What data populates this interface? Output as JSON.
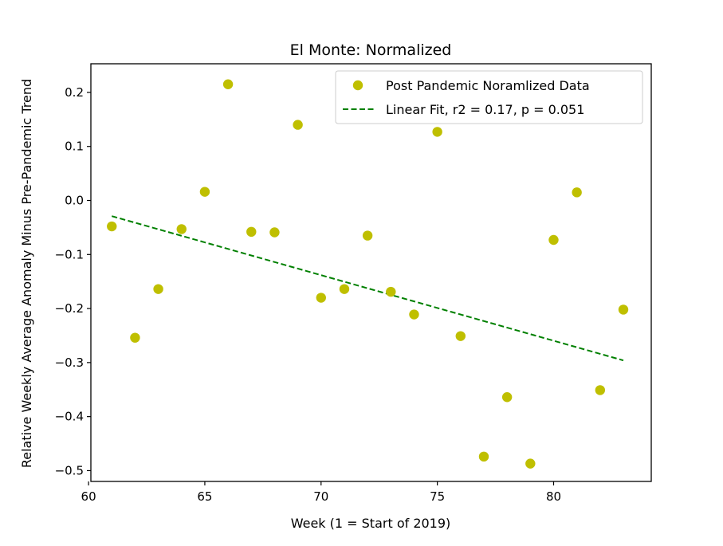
{
  "chart_data": {
    "type": "scatter",
    "title": "El Monte: Normalized",
    "xlabel": "Week (1 = Start of 2019)",
    "ylabel": "Relative Weekly Average Anomaly Minus Pre-Pandemic Trend",
    "xlim": [
      60.1,
      84.2
    ],
    "ylim": [
      -0.52,
      0.253
    ],
    "xticks": [
      60,
      65,
      70,
      75,
      80
    ],
    "xtick_labels": [
      "60",
      "65",
      "70",
      "75",
      "80"
    ],
    "yticks": [
      -0.5,
      -0.4,
      -0.3,
      -0.2,
      -0.1,
      0.0,
      0.1,
      0.2
    ],
    "ytick_labels": [
      "−0.5",
      "−0.4",
      "−0.3",
      "−0.2",
      "−0.1",
      "0.0",
      "0.1",
      "0.2"
    ],
    "grid": false,
    "legend_position": "top-right",
    "series": [
      {
        "name": "Post Pandemic Noramlized Data",
        "kind": "scatter",
        "color": "#bfbf00",
        "x": [
          61,
          62,
          63,
          64,
          65,
          66,
          67,
          68,
          69,
          70,
          71,
          72,
          73,
          74,
          75,
          76,
          77,
          78,
          79,
          80,
          81,
          82,
          83
        ],
        "y": [
          -0.048,
          -0.254,
          -0.164,
          -0.053,
          0.016,
          0.215,
          -0.058,
          -0.059,
          0.14,
          -0.18,
          -0.164,
          -0.065,
          -0.169,
          -0.211,
          0.127,
          -0.251,
          -0.474,
          -0.364,
          -0.487,
          -0.073,
          0.015,
          -0.351,
          -0.202
        ]
      },
      {
        "name": "Linear Fit, r2 = 0.17, p = 0.051",
        "kind": "line",
        "style": "dashed",
        "color": "#008000",
        "x": [
          61,
          83
        ],
        "y": [
          -0.029,
          -0.296
        ]
      }
    ]
  }
}
